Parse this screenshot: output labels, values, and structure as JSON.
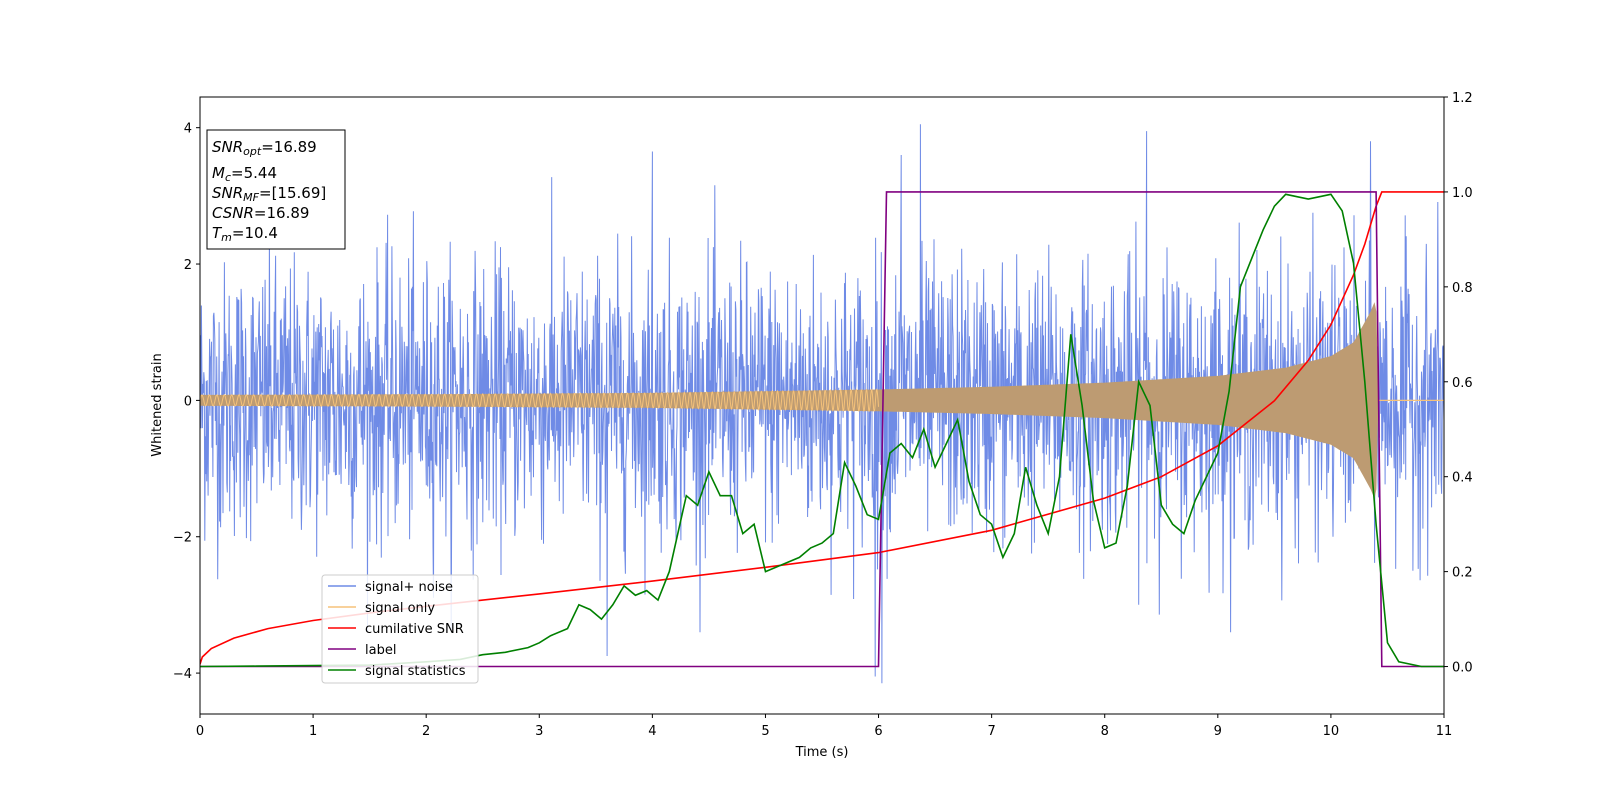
{
  "chart_data": {
    "type": "line",
    "xlabel": "Time (s)",
    "ylabel": "Whitened strain",
    "xlim": [
      0,
      11
    ],
    "ylim": [
      -4.6,
      4.45
    ],
    "y2lim": [
      -0.1,
      1.2
    ],
    "xticks": [
      "0",
      "1",
      "2",
      "3",
      "4",
      "5",
      "6",
      "7",
      "8",
      "9",
      "10",
      "11"
    ],
    "yticks": [
      "4",
      "2",
      "0",
      "−2",
      "−4"
    ],
    "y2ticks": [
      "1.2",
      "1.0",
      "0.8",
      "0.6",
      "0.4",
      "0.2",
      "0.0"
    ],
    "info_box": {
      "snr_opt": {
        "name": "SNR",
        "sub": "opt",
        "value": "=16.89"
      },
      "mc": {
        "name": "M",
        "sub": "c",
        "value": "=5.44"
      },
      "snr_mf": {
        "name": "SNR",
        "sub": "MF",
        "value": "=[15.69]"
      },
      "csnr": {
        "name": "CSNR",
        "value": "=16.89"
      },
      "tm": {
        "name": "T",
        "sub": "m",
        "value": "=10.4"
      }
    },
    "legend": {
      "position": "lower-left",
      "entries": [
        "signal+ noise",
        "signal only",
        "cumilative SNR",
        "label",
        "signal statistics"
      ]
    },
    "colors": {
      "noise": "#6f8be6",
      "signal": "#f5c27a",
      "overlap": "#bd9b72",
      "csnr": "#ff0000",
      "label": "#800080",
      "stats": "#008000"
    },
    "series": [
      {
        "name": "signal+ noise",
        "axis": "left",
        "description_values": "noise envelope approx",
        "envelope_upper_rms": 1.0,
        "extremes": [
          {
            "t": 4.0,
            "y": 3.65
          },
          {
            "t": 6.2,
            "y": 3.6
          },
          {
            "t": 6.37,
            "y": 4.05
          },
          {
            "t": 8.37,
            "y": 3.95
          },
          {
            "t": 10.35,
            "y": 3.8
          },
          {
            "t": 6.03,
            "y": -4.15
          },
          {
            "t": 5.97,
            "y": -4.05
          },
          {
            "t": 3.6,
            "y": -3.75
          }
        ]
      },
      {
        "name": "signal only",
        "axis": "left",
        "amplitude": [
          {
            "t": 0,
            "a": 0.08
          },
          {
            "t": 2,
            "a": 0.09
          },
          {
            "t": 4,
            "a": 0.11
          },
          {
            "t": 6,
            "a": 0.16
          },
          {
            "t": 7,
            "a": 0.2
          },
          {
            "t": 8,
            "a": 0.26
          },
          {
            "t": 9,
            "a": 0.36
          },
          {
            "t": 9.6,
            "a": 0.48
          },
          {
            "t": 10.0,
            "a": 0.65
          },
          {
            "t": 10.2,
            "a": 0.85
          },
          {
            "t": 10.35,
            "a": 1.3
          },
          {
            "t": 10.4,
            "a": 1.5
          },
          {
            "t": 10.42,
            "a": 0
          },
          {
            "t": 11,
            "a": 0
          }
        ]
      },
      {
        "name": "cumilative SNR",
        "axis": "right",
        "x": [
          0,
          0.02,
          0.1,
          0.3,
          0.6,
          1.0,
          1.5,
          2.0,
          3.0,
          4.0,
          5.0,
          6.0,
          7.0,
          8.0,
          8.5,
          9.0,
          9.5,
          9.8,
          10.0,
          10.2,
          10.3,
          10.4,
          10.45,
          11.0
        ],
        "y": [
          0.005,
          0.02,
          0.038,
          0.06,
          0.08,
          0.097,
          0.113,
          0.127,
          0.153,
          0.18,
          0.209,
          0.24,
          0.287,
          0.355,
          0.4,
          0.465,
          0.56,
          0.645,
          0.72,
          0.825,
          0.89,
          0.97,
          1.0,
          1.0
        ]
      },
      {
        "name": "label",
        "axis": "right",
        "x": [
          0,
          6.0,
          6.07,
          10.4,
          10.45,
          11.0
        ],
        "y": [
          0.0,
          0.0,
          1.0,
          1.0,
          0.0,
          0.0
        ]
      },
      {
        "name": "signal statistics",
        "axis": "right",
        "x": [
          0,
          0.5,
          1.0,
          1.5,
          2.0,
          2.3,
          2.5,
          2.7,
          2.9,
          3.0,
          3.1,
          3.25,
          3.35,
          3.45,
          3.55,
          3.65,
          3.75,
          3.85,
          3.95,
          4.05,
          4.15,
          4.3,
          4.4,
          4.5,
          4.6,
          4.7,
          4.8,
          4.9,
          5.0,
          5.1,
          5.2,
          5.3,
          5.4,
          5.5,
          5.6,
          5.7,
          5.8,
          5.9,
          6.0,
          6.1,
          6.2,
          6.3,
          6.4,
          6.5,
          6.6,
          6.7,
          6.8,
          6.9,
          7.0,
          7.1,
          7.2,
          7.3,
          7.4,
          7.5,
          7.6,
          7.7,
          7.8,
          7.9,
          8.0,
          8.1,
          8.2,
          8.3,
          8.4,
          8.5,
          8.6,
          8.7,
          8.8,
          8.9,
          9.0,
          9.1,
          9.2,
          9.3,
          9.4,
          9.5,
          9.6,
          9.7,
          9.8,
          9.9,
          10.0,
          10.1,
          10.2,
          10.3,
          10.4,
          10.5,
          10.6,
          10.8,
          11.0
        ],
        "y": [
          0.0,
          0.001,
          0.002,
          0.003,
          0.01,
          0.015,
          0.025,
          0.03,
          0.04,
          0.05,
          0.065,
          0.08,
          0.13,
          0.12,
          0.1,
          0.13,
          0.17,
          0.15,
          0.16,
          0.14,
          0.2,
          0.36,
          0.34,
          0.41,
          0.36,
          0.36,
          0.28,
          0.3,
          0.2,
          0.21,
          0.22,
          0.23,
          0.25,
          0.26,
          0.28,
          0.43,
          0.38,
          0.32,
          0.31,
          0.45,
          0.47,
          0.44,
          0.5,
          0.42,
          0.47,
          0.52,
          0.39,
          0.32,
          0.3,
          0.23,
          0.28,
          0.42,
          0.34,
          0.28,
          0.4,
          0.7,
          0.55,
          0.35,
          0.25,
          0.26,
          0.38,
          0.6,
          0.55,
          0.34,
          0.3,
          0.28,
          0.35,
          0.4,
          0.45,
          0.58,
          0.8,
          0.86,
          0.92,
          0.97,
          0.995,
          0.99,
          0.985,
          0.99,
          0.995,
          0.96,
          0.85,
          0.6,
          0.3,
          0.05,
          0.01,
          0.0,
          0.0
        ]
      }
    ],
    "grid": false
  }
}
